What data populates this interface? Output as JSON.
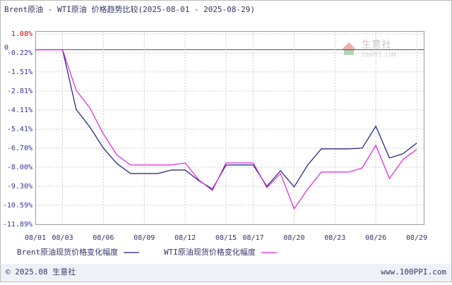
{
  "chart_data": {
    "type": "line",
    "title": "Brent原油 - WTI原油 价格趋势比较(2025-08-01 - 2025-08-29)",
    "categories": [
      "08/01",
      null,
      "08/03",
      null,
      null,
      "08/06",
      null,
      null,
      "08/09",
      null,
      null,
      "08/12",
      null,
      null,
      "08/15",
      null,
      "08/17",
      null,
      null,
      "08/20",
      null,
      null,
      "08/23",
      null,
      null,
      "08/26",
      null,
      null,
      "08/29"
    ],
    "series": [
      {
        "name": "Brent原油现货价格变化幅度",
        "color": "#1a1a80",
        "values": [
          0,
          0,
          0,
          -4.06,
          -5.26,
          -6.7,
          -7.76,
          -8.43,
          -8.43,
          -8.43,
          -8.19,
          -8.19,
          -8.91,
          -9.49,
          -7.85,
          -7.85,
          -7.85,
          -9.3,
          -8.24,
          -9.34,
          -7.85,
          -6.75,
          -6.75,
          -6.75,
          -6.7,
          -5.21,
          -7.37,
          -7.08,
          -6.36
        ]
      },
      {
        "name": "WTI原油现货价格变化幅度",
        "color": "#e020e0",
        "values": [
          0,
          0,
          0,
          -2.76,
          -3.96,
          -5.74,
          -7.18,
          -7.85,
          -7.85,
          -7.85,
          -7.85,
          -7.71,
          -8.86,
          -9.58,
          -7.71,
          -7.71,
          -7.71,
          -9.39,
          -8.43,
          -10.83,
          -9.49,
          -8.33,
          -8.33,
          -8.33,
          -8.05,
          -6.51,
          -8.77,
          -7.47,
          -6.8
        ]
      }
    ],
    "ylim": [
      -11.89,
      1.08
    ],
    "yticks": [
      {
        "value": 1.08,
        "label": "1.08%"
      },
      {
        "value": -0.22,
        "label": "-0.22%"
      },
      {
        "value": -1.51,
        "label": "-1.51%"
      },
      {
        "value": -2.81,
        "label": "-2.81%"
      },
      {
        "value": -4.11,
        "label": "-4.11%"
      },
      {
        "value": -5.41,
        "label": "-5.41%"
      },
      {
        "value": -6.7,
        "label": "-6.70%"
      },
      {
        "value": -8.0,
        "label": "-8.00%"
      },
      {
        "value": -9.3,
        "label": "-9.30%"
      },
      {
        "value": -10.59,
        "label": "-10.59%"
      },
      {
        "value": -11.89,
        "label": "-11.89%"
      }
    ],
    "zero_label": 0,
    "grid": true,
    "tick_colors": {
      "positive": "#cc0000",
      "negative": "#333399"
    },
    "watermark": {
      "name": "生意社",
      "site": "100PPI.COM"
    },
    "footer": {
      "left": "© 2025.08 生意社",
      "right": "www.100PPI.com"
    }
  }
}
